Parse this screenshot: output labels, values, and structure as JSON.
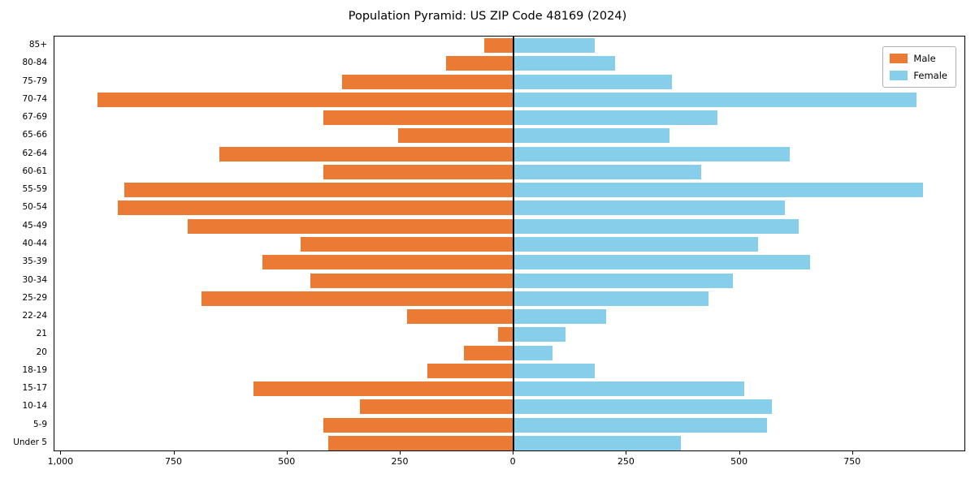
{
  "chart_data": {
    "type": "bar",
    "orientation": "horizontal",
    "variant": "population-pyramid",
    "title": "Population Pyramid: US ZIP Code 48169 (2024)",
    "categories_top_to_bottom": [
      "85+",
      "80-84",
      "75-79",
      "70-74",
      "67-69",
      "65-66",
      "62-64",
      "60-61",
      "55-59",
      "50-54",
      "45-49",
      "40-44",
      "35-39",
      "30-34",
      "25-29",
      "22-24",
      "21",
      "20",
      "18-19",
      "15-17",
      "10-14",
      "5-9",
      "Under 5"
    ],
    "series": [
      {
        "name": "Male",
        "side": "left",
        "color": "#EB7A34",
        "values": [
          65,
          150,
          380,
          920,
          420,
          255,
          650,
          420,
          860,
          875,
          720,
          470,
          555,
          450,
          690,
          235,
          35,
          110,
          190,
          575,
          340,
          420,
          410
        ]
      },
      {
        "name": "Female",
        "side": "right",
        "color": "#87CEEB",
        "values": [
          180,
          225,
          350,
          890,
          450,
          345,
          610,
          415,
          905,
          600,
          630,
          540,
          655,
          485,
          430,
          205,
          115,
          85,
          180,
          510,
          570,
          560,
          370
        ]
      }
    ],
    "x_ticks": [
      -1000,
      -750,
      -500,
      -250,
      0,
      250,
      500,
      750
    ],
    "x_tick_labels": [
      "1,000",
      "750",
      "500",
      "250",
      "0",
      "250",
      "500",
      "750"
    ],
    "xlim": [
      -1015,
      1000
    ],
    "grid": false,
    "legend_position": "upper-right",
    "legend_entries": [
      "Male",
      "Female"
    ]
  }
}
